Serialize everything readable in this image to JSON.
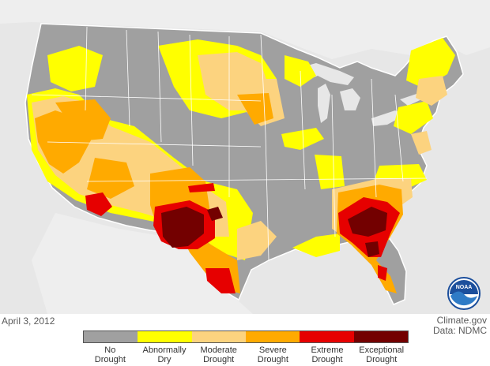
{
  "map": {
    "colors": {
      "background": "#e7e7e7",
      "land_outline": "#ffffff",
      "none": "#a0a0a0",
      "d0": "#ffff00",
      "d1": "#fcd37f",
      "d2": "#ffaa00",
      "d3": "#e60000",
      "d4": "#730000"
    }
  },
  "footer": {
    "date": "April 3, 2012",
    "source": "Climate.gov",
    "data_credit": "Data: NDMC"
  },
  "legend": {
    "items": [
      {
        "label": "No Drought",
        "color": "#a0a0a0"
      },
      {
        "label": "Abnormally Dry",
        "color": "#ffff00"
      },
      {
        "label": "Moderate Drought",
        "color": "#fcd37f"
      },
      {
        "label": "Severe Drought",
        "color": "#ffaa00"
      },
      {
        "label": "Extreme Drought",
        "color": "#e60000"
      },
      {
        "label": "Exceptional Drought",
        "color": "#730000"
      }
    ]
  },
  "logo": {
    "icon": "noaa-logo-icon",
    "text": "NOAA"
  }
}
